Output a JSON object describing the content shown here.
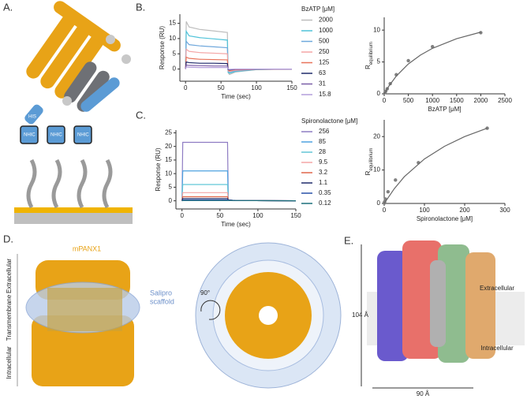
{
  "chart_data": [
    {
      "type": "line",
      "legend_title": "BzATP [μM]",
      "xlabel": "Time (sec)",
      "ylabel": "Response (RU)",
      "x": [
        0,
        1,
        5,
        20,
        40,
        59,
        60,
        62,
        70,
        100,
        150
      ],
      "xlim": [
        -8,
        150
      ],
      "xticks": [
        0,
        50,
        100,
        150
      ],
      "ylim": [
        -4,
        18
      ],
      "yticks": [
        0,
        5,
        10,
        15
      ],
      "series": [
        {
          "name": "2000",
          "color": "#bdbdbd",
          "values": [
            0,
            15.6,
            13.8,
            13,
            12.5,
            12,
            -1.2,
            -1.8,
            -1,
            -0.2,
            0
          ]
        },
        {
          "name": "1000",
          "color": "#4fc3d9",
          "values": [
            0,
            12.4,
            10.9,
            10.3,
            9.9,
            9.5,
            -1,
            -1.4,
            -0.8,
            -0.2,
            0
          ]
        },
        {
          "name": "500",
          "color": "#6fa8dc",
          "values": [
            0,
            9.1,
            8,
            7.6,
            7.3,
            7,
            -0.7,
            -1,
            -0.6,
            -0.1,
            0
          ]
        },
        {
          "name": "250",
          "color": "#f4a6a6",
          "values": [
            0,
            6.5,
            5.8,
            5.4,
            5.2,
            5,
            -0.5,
            -0.8,
            -0.4,
            -0.1,
            0
          ]
        },
        {
          "name": "125",
          "color": "#e8735a",
          "values": [
            0,
            3.9,
            3.5,
            3.2,
            3.1,
            3,
            -0.3,
            -0.5,
            -0.2,
            -0.1,
            0
          ]
        },
        {
          "name": "63",
          "color": "#1f2a6b",
          "values": [
            0,
            2.3,
            2.1,
            1.9,
            1.9,
            1.8,
            -0.2,
            -0.3,
            -0.1,
            0,
            0
          ]
        },
        {
          "name": "31",
          "color": "#7b5ea7",
          "values": [
            0,
            1.3,
            1.2,
            1.1,
            1,
            1,
            -0.1,
            -0.2,
            -0.1,
            0,
            0
          ]
        },
        {
          "name": "15.8",
          "color": "#b39ddb",
          "values": [
            0,
            0.7,
            0.6,
            0.5,
            0.5,
            0.5,
            0,
            -0.1,
            0,
            0,
            0
          ]
        }
      ]
    },
    {
      "type": "scatter",
      "xlabel": "BzATP [μM]",
      "ylabel": {
        "main": "R",
        "sub": "equilibrium"
      },
      "xlim": [
        0,
        2500
      ],
      "xticks": [
        0,
        500,
        1000,
        1500,
        2000,
        2500
      ],
      "ylim": [
        0,
        12
      ],
      "yticks": [
        0,
        5,
        10
      ],
      "series": [
        {
          "mode": "markers",
          "color": "#808080",
          "x": [
            15.8,
            31,
            63,
            125,
            250,
            500,
            1000,
            2000
          ],
          "values": [
            0.2,
            0.4,
            0.8,
            1.6,
            3,
            5.2,
            7.4,
            9.6
          ]
        },
        {
          "mode": "line",
          "color": "#666666",
          "x": [
            0,
            100,
            250,
            500,
            750,
            1000,
            1500,
            2000
          ],
          "values": [
            0,
            1.25,
            2.78,
            4.69,
            6.08,
            7.14,
            8.65,
            9.68
          ]
        }
      ]
    },
    {
      "type": "line",
      "legend_title": "Spironolactone [μM]",
      "xlabel": "Time (sec)",
      "ylabel": "Response (RU)",
      "x": [
        0,
        1,
        59,
        60,
        61,
        70,
        150
      ],
      "xlim": [
        -8,
        150
      ],
      "xticks": [
        0,
        50,
        100,
        150
      ],
      "ylim": [
        -3,
        26
      ],
      "yticks": [
        0,
        5,
        10,
        15,
        20,
        25
      ],
      "series": [
        {
          "name": "256",
          "color": "#8e7cc3",
          "values": [
            0,
            21.5,
            21.5,
            21.5,
            0.3,
            0.1,
            0
          ]
        },
        {
          "name": "85",
          "color": "#4fa3e0",
          "values": [
            0,
            11,
            11,
            11,
            0.3,
            0.1,
            0
          ]
        },
        {
          "name": "28",
          "color": "#62c6d6",
          "values": [
            0,
            6,
            6,
            6,
            0.3,
            0.1,
            0
          ]
        },
        {
          "name": "9.5",
          "color": "#f4a6a6",
          "values": [
            0,
            3,
            3,
            3,
            0.3,
            0.1,
            0
          ]
        },
        {
          "name": "3.2",
          "color": "#e0664a",
          "values": [
            0,
            1.5,
            1.5,
            1.5,
            0.3,
            0.1,
            0
          ]
        },
        {
          "name": "1.1",
          "color": "#1f2a6b",
          "values": [
            0,
            0.8,
            0.8,
            0.8,
            0.3,
            0.1,
            0
          ]
        },
        {
          "name": "0.35",
          "color": "#2850a8",
          "values": [
            0,
            0.3,
            0.3,
            0.3,
            0.3,
            0.1,
            0
          ]
        },
        {
          "name": "0.12",
          "color": "#1b6f7a",
          "values": [
            0,
            0.1,
            0.1,
            0.1,
            0.1,
            0.1,
            0
          ]
        }
      ]
    },
    {
      "type": "scatter",
      "xlabel": "Spironolactone [μM]",
      "ylabel": {
        "main": "R",
        "sub": "equilibrium"
      },
      "xlim": [
        0,
        300
      ],
      "xticks": [
        0,
        100,
        200,
        300
      ],
      "ylim": [
        0,
        25
      ],
      "yticks": [
        0,
        10,
        20
      ],
      "series": [
        {
          "mode": "markers",
          "color": "#808080",
          "x": [
            0.12,
            0.35,
            1.1,
            3.2,
            9.5,
            28,
            85,
            256
          ],
          "values": [
            0.1,
            0.2,
            0.5,
            1.3,
            3.5,
            7,
            12.2,
            22.5
          ]
        },
        {
          "mode": "line",
          "color": "#666666",
          "x": [
            0,
            25,
            50,
            100,
            150,
            200,
            256
          ],
          "values": [
            0,
            4.4,
            8,
            13.3,
            17.1,
            20,
            22.5
          ]
        }
      ]
    }
  ],
  "panels": {
    "a": {
      "label": "A.",
      "his": "HIS",
      "nhic": "NHIC"
    },
    "b": {
      "label": "B."
    },
    "c": {
      "label": "C."
    },
    "d": {
      "label": "D.",
      "protein": "mPANX1",
      "scaffold1": "Salipro",
      "scaffold2": "scaffold",
      "extracellular": "Extracellular",
      "transmembrane": "Transmembrane",
      "intracellular": "Intracellular",
      "rotation": "90°"
    },
    "e": {
      "label": "E.",
      "extracellular": "Extracellular",
      "intracellular": "Intracellular",
      "height": "104 Å",
      "width": "90 Å"
    }
  }
}
